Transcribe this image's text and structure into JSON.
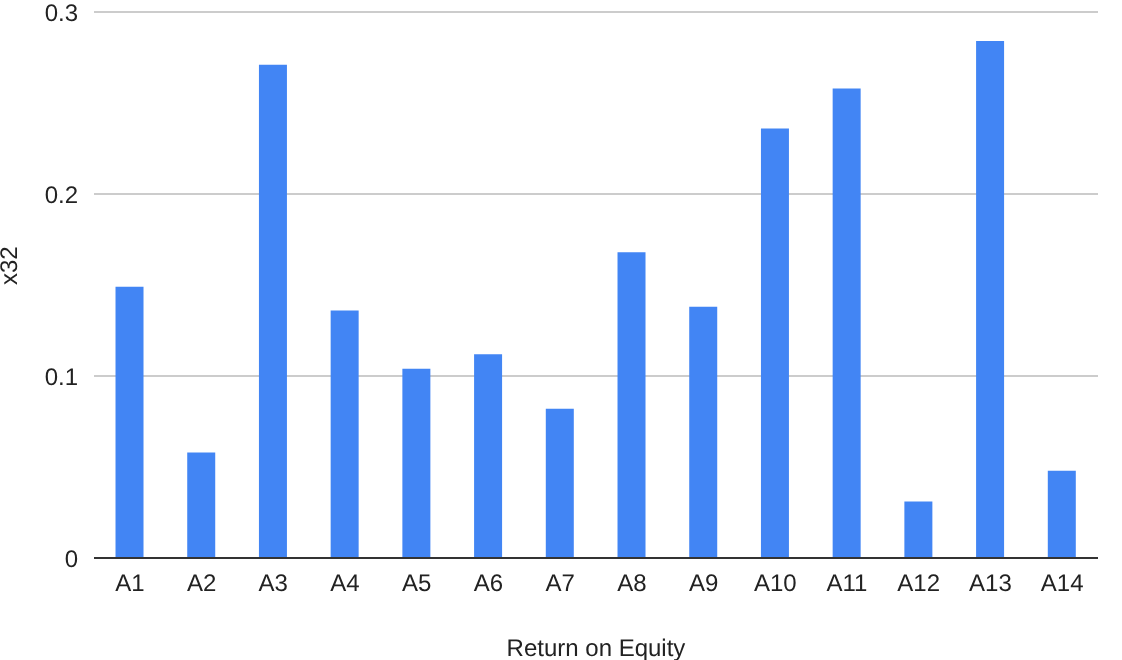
{
  "chart_data": {
    "type": "bar",
    "xlabel": "Return on Equity",
    "ylabel": "x32",
    "categories": [
      "A1",
      "A2",
      "A3",
      "A4",
      "A5",
      "A6",
      "A7",
      "A8",
      "A9",
      "A10",
      "A11",
      "A12",
      "A13",
      "A14"
    ],
    "values": [
      0.149,
      0.058,
      0.271,
      0.136,
      0.104,
      0.112,
      0.082,
      0.168,
      0.138,
      0.236,
      0.258,
      0.031,
      0.284,
      0.048
    ],
    "color": "#4285f4",
    "ylim": [
      0,
      0.3
    ],
    "yticks": [
      0,
      0.1,
      0.2,
      0.3
    ],
    "grid": "y",
    "legend": false
  }
}
